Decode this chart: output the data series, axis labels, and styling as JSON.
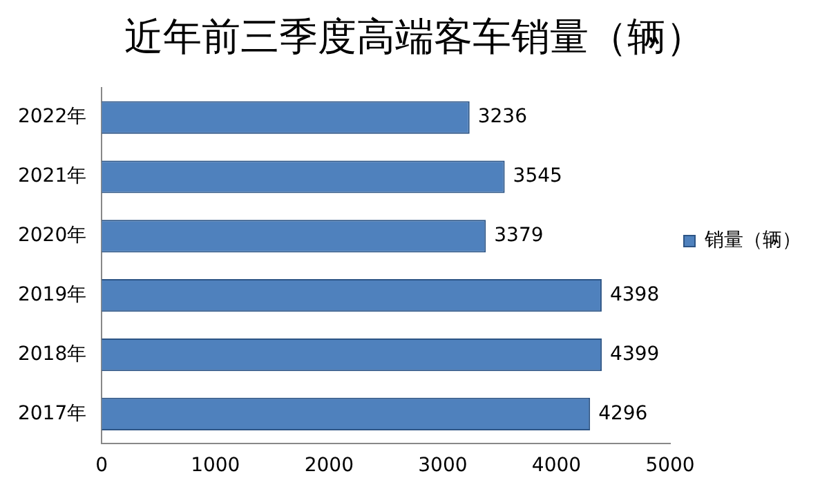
{
  "chart_data": {
    "type": "bar",
    "orientation": "horizontal",
    "title": "近年前三季度高端客车销量（辆）",
    "categories": [
      "2022年",
      "2021年",
      "2020年",
      "2019年",
      "2018年",
      "2017年"
    ],
    "series": [
      {
        "name": "销量（辆）",
        "color": "#4f81bd",
        "values": [
          3236,
          3545,
          3379,
          4398,
          4399,
          4296
        ]
      }
    ],
    "xlim": [
      0,
      5000
    ],
    "xticks": [
      0,
      1000,
      2000,
      3000,
      4000,
      5000
    ],
    "grid": false,
    "legend": "right",
    "data_labels": true
  }
}
